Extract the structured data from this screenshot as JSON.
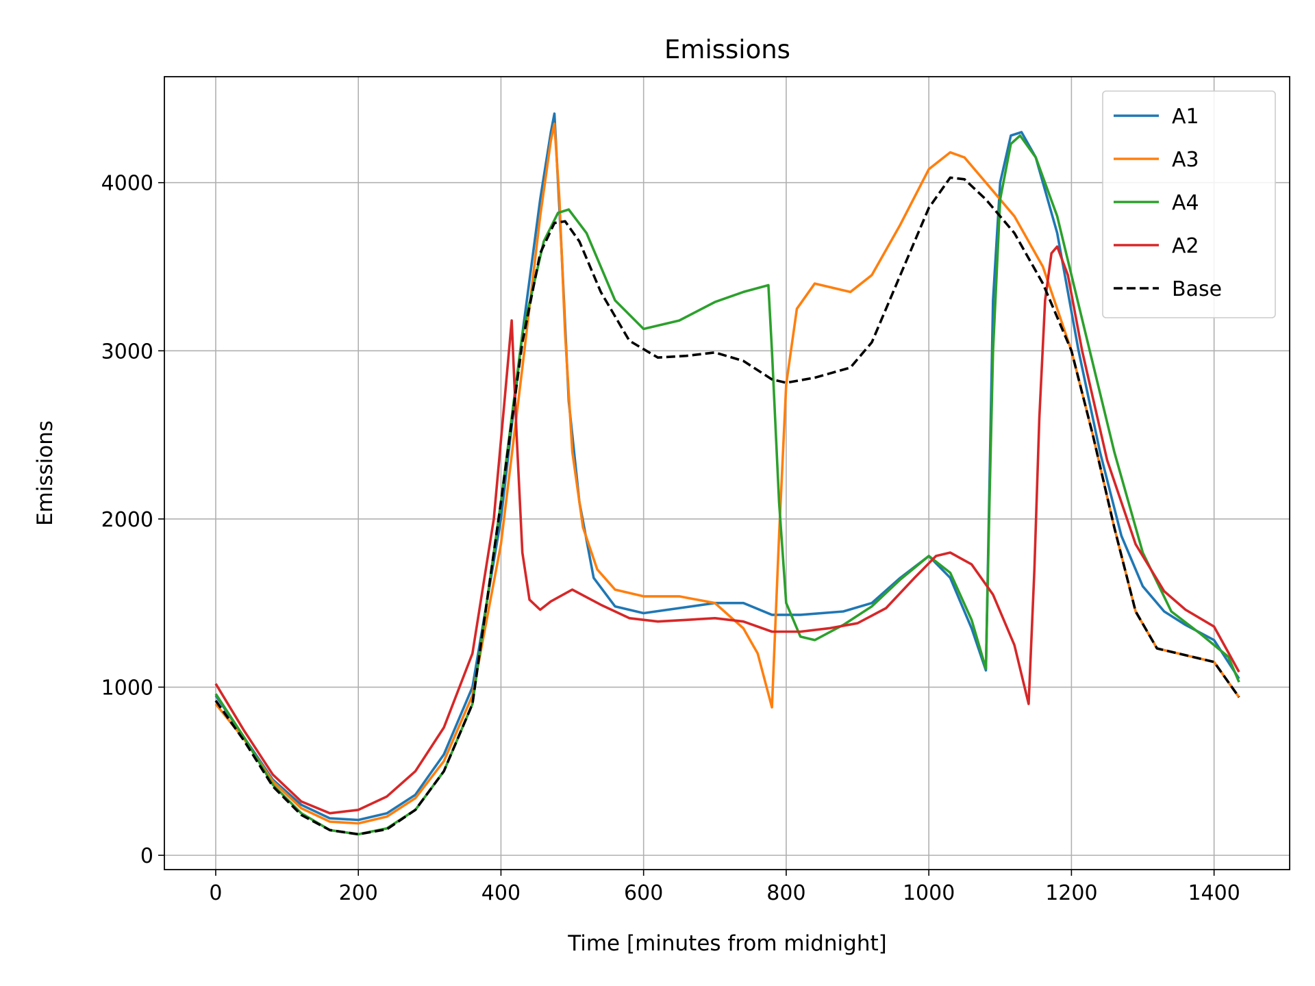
{
  "chart_data": {
    "type": "line",
    "title": "Emissions",
    "xlabel": "Time [minutes from midnight]",
    "ylabel": "Emissions",
    "xlim": [
      -72,
      1506
    ],
    "ylim": [
      -85,
      4630
    ],
    "xticks": [
      0,
      200,
      400,
      600,
      800,
      1000,
      1200,
      1400
    ],
    "yticks": [
      0,
      1000,
      2000,
      3000,
      4000
    ],
    "grid": true,
    "legend_position": "top-right",
    "series": [
      {
        "name": "A1",
        "color": "#1f77b4",
        "dash": "solid",
        "points": [
          [
            0,
            950
          ],
          [
            40,
            700
          ],
          [
            80,
            450
          ],
          [
            120,
            300
          ],
          [
            160,
            220
          ],
          [
            200,
            210
          ],
          [
            240,
            250
          ],
          [
            280,
            360
          ],
          [
            320,
            600
          ],
          [
            360,
            1000
          ],
          [
            400,
            2000
          ],
          [
            430,
            3100
          ],
          [
            455,
            3900
          ],
          [
            470,
            4300
          ],
          [
            475,
            4410
          ],
          [
            485,
            3600
          ],
          [
            495,
            2700
          ],
          [
            510,
            2100
          ],
          [
            530,
            1650
          ],
          [
            560,
            1480
          ],
          [
            600,
            1440
          ],
          [
            650,
            1470
          ],
          [
            700,
            1500
          ],
          [
            740,
            1500
          ],
          [
            780,
            1430
          ],
          [
            820,
            1430
          ],
          [
            880,
            1450
          ],
          [
            920,
            1500
          ],
          [
            960,
            1650
          ],
          [
            1000,
            1780
          ],
          [
            1030,
            1650
          ],
          [
            1060,
            1350
          ],
          [
            1080,
            1100
          ],
          [
            1085,
            2200
          ],
          [
            1090,
            3300
          ],
          [
            1100,
            4000
          ],
          [
            1115,
            4280
          ],
          [
            1130,
            4300
          ],
          [
            1150,
            4150
          ],
          [
            1180,
            3700
          ],
          [
            1210,
            3000
          ],
          [
            1240,
            2400
          ],
          [
            1270,
            1900
          ],
          [
            1300,
            1600
          ],
          [
            1330,
            1450
          ],
          [
            1360,
            1370
          ],
          [
            1400,
            1280
          ],
          [
            1435,
            1050
          ]
        ]
      },
      {
        "name": "A3",
        "color": "#ff7f0e",
        "dash": "solid",
        "points": [
          [
            0,
            900
          ],
          [
            40,
            690
          ],
          [
            80,
            440
          ],
          [
            120,
            280
          ],
          [
            160,
            200
          ],
          [
            200,
            190
          ],
          [
            240,
            230
          ],
          [
            280,
            340
          ],
          [
            320,
            560
          ],
          [
            360,
            950
          ],
          [
            400,
            1850
          ],
          [
            430,
            2900
          ],
          [
            455,
            3800
          ],
          [
            470,
            4250
          ],
          [
            475,
            4350
          ],
          [
            482,
            3900
          ],
          [
            490,
            3100
          ],
          [
            500,
            2400
          ],
          [
            515,
            1950
          ],
          [
            535,
            1700
          ],
          [
            560,
            1580
          ],
          [
            600,
            1540
          ],
          [
            650,
            1540
          ],
          [
            700,
            1500
          ],
          [
            740,
            1350
          ],
          [
            760,
            1200
          ],
          [
            780,
            880
          ],
          [
            790,
            1900
          ],
          [
            800,
            2800
          ],
          [
            815,
            3250
          ],
          [
            840,
            3400
          ],
          [
            870,
            3370
          ],
          [
            890,
            3350
          ],
          [
            920,
            3450
          ],
          [
            960,
            3750
          ],
          [
            1000,
            4080
          ],
          [
            1030,
            4180
          ],
          [
            1050,
            4150
          ],
          [
            1080,
            4000
          ],
          [
            1120,
            3800
          ],
          [
            1160,
            3500
          ],
          [
            1200,
            3000
          ],
          [
            1230,
            2500
          ],
          [
            1260,
            1950
          ],
          [
            1290,
            1450
          ],
          [
            1320,
            1230
          ],
          [
            1360,
            1190
          ],
          [
            1400,
            1150
          ],
          [
            1435,
            940
          ]
        ]
      },
      {
        "name": "A4",
        "color": "#2ca02c",
        "dash": "solid",
        "points": [
          [
            0,
            960
          ],
          [
            40,
            700
          ],
          [
            80,
            420
          ],
          [
            120,
            250
          ],
          [
            160,
            150
          ],
          [
            200,
            125
          ],
          [
            240,
            160
          ],
          [
            280,
            270
          ],
          [
            320,
            500
          ],
          [
            360,
            900
          ],
          [
            400,
            2100
          ],
          [
            430,
            3100
          ],
          [
            460,
            3650
          ],
          [
            480,
            3820
          ],
          [
            495,
            3840
          ],
          [
            520,
            3700
          ],
          [
            560,
            3300
          ],
          [
            600,
            3130
          ],
          [
            650,
            3180
          ],
          [
            700,
            3290
          ],
          [
            740,
            3350
          ],
          [
            775,
            3390
          ],
          [
            780,
            3000
          ],
          [
            790,
            2100
          ],
          [
            800,
            1500
          ],
          [
            820,
            1300
          ],
          [
            840,
            1280
          ],
          [
            880,
            1370
          ],
          [
            920,
            1480
          ],
          [
            960,
            1640
          ],
          [
            1000,
            1780
          ],
          [
            1030,
            1680
          ],
          [
            1060,
            1400
          ],
          [
            1080,
            1110
          ],
          [
            1085,
            2100
          ],
          [
            1090,
            3000
          ],
          [
            1100,
            3900
          ],
          [
            1115,
            4230
          ],
          [
            1128,
            4280
          ],
          [
            1150,
            4150
          ],
          [
            1180,
            3800
          ],
          [
            1220,
            3100
          ],
          [
            1260,
            2400
          ],
          [
            1300,
            1800
          ],
          [
            1340,
            1450
          ],
          [
            1380,
            1320
          ],
          [
            1420,
            1180
          ],
          [
            1435,
            1030
          ]
        ]
      },
      {
        "name": "A2",
        "color": "#d62728",
        "dash": "solid",
        "points": [
          [
            0,
            1020
          ],
          [
            40,
            740
          ],
          [
            80,
            480
          ],
          [
            120,
            320
          ],
          [
            160,
            250
          ],
          [
            200,
            270
          ],
          [
            240,
            350
          ],
          [
            280,
            500
          ],
          [
            320,
            760
          ],
          [
            360,
            1200
          ],
          [
            390,
            2000
          ],
          [
            405,
            2700
          ],
          [
            415,
            3180
          ],
          [
            422,
            2500
          ],
          [
            430,
            1800
          ],
          [
            440,
            1520
          ],
          [
            455,
            1460
          ],
          [
            470,
            1510
          ],
          [
            500,
            1580
          ],
          [
            540,
            1490
          ],
          [
            580,
            1410
          ],
          [
            620,
            1390
          ],
          [
            660,
            1400
          ],
          [
            700,
            1410
          ],
          [
            740,
            1390
          ],
          [
            780,
            1330
          ],
          [
            820,
            1330
          ],
          [
            860,
            1350
          ],
          [
            900,
            1380
          ],
          [
            940,
            1470
          ],
          [
            980,
            1650
          ],
          [
            1010,
            1780
          ],
          [
            1030,
            1800
          ],
          [
            1060,
            1730
          ],
          [
            1090,
            1550
          ],
          [
            1120,
            1250
          ],
          [
            1140,
            900
          ],
          [
            1148,
            1700
          ],
          [
            1155,
            2600
          ],
          [
            1163,
            3300
          ],
          [
            1172,
            3580
          ],
          [
            1180,
            3620
          ],
          [
            1195,
            3450
          ],
          [
            1215,
            3000
          ],
          [
            1250,
            2350
          ],
          [
            1290,
            1850
          ],
          [
            1330,
            1570
          ],
          [
            1360,
            1460
          ],
          [
            1400,
            1360
          ],
          [
            1435,
            1090
          ]
        ]
      },
      {
        "name": "Base",
        "color": "#000000",
        "dash": "dashed",
        "points": [
          [
            0,
            920
          ],
          [
            40,
            680
          ],
          [
            80,
            410
          ],
          [
            120,
            240
          ],
          [
            160,
            150
          ],
          [
            200,
            125
          ],
          [
            240,
            155
          ],
          [
            280,
            270
          ],
          [
            320,
            500
          ],
          [
            360,
            900
          ],
          [
            400,
            2100
          ],
          [
            430,
            3050
          ],
          [
            455,
            3580
          ],
          [
            475,
            3760
          ],
          [
            490,
            3770
          ],
          [
            510,
            3650
          ],
          [
            540,
            3350
          ],
          [
            580,
            3060
          ],
          [
            620,
            2960
          ],
          [
            660,
            2970
          ],
          [
            700,
            2990
          ],
          [
            740,
            2940
          ],
          [
            780,
            2830
          ],
          [
            800,
            2810
          ],
          [
            840,
            2840
          ],
          [
            890,
            2900
          ],
          [
            920,
            3050
          ],
          [
            960,
            3450
          ],
          [
            1000,
            3850
          ],
          [
            1030,
            4030
          ],
          [
            1050,
            4020
          ],
          [
            1080,
            3900
          ],
          [
            1120,
            3700
          ],
          [
            1160,
            3400
          ],
          [
            1200,
            3000
          ],
          [
            1230,
            2500
          ],
          [
            1260,
            1950
          ],
          [
            1290,
            1450
          ],
          [
            1320,
            1230
          ],
          [
            1360,
            1190
          ],
          [
            1400,
            1150
          ],
          [
            1435,
            940
          ]
        ]
      }
    ]
  }
}
